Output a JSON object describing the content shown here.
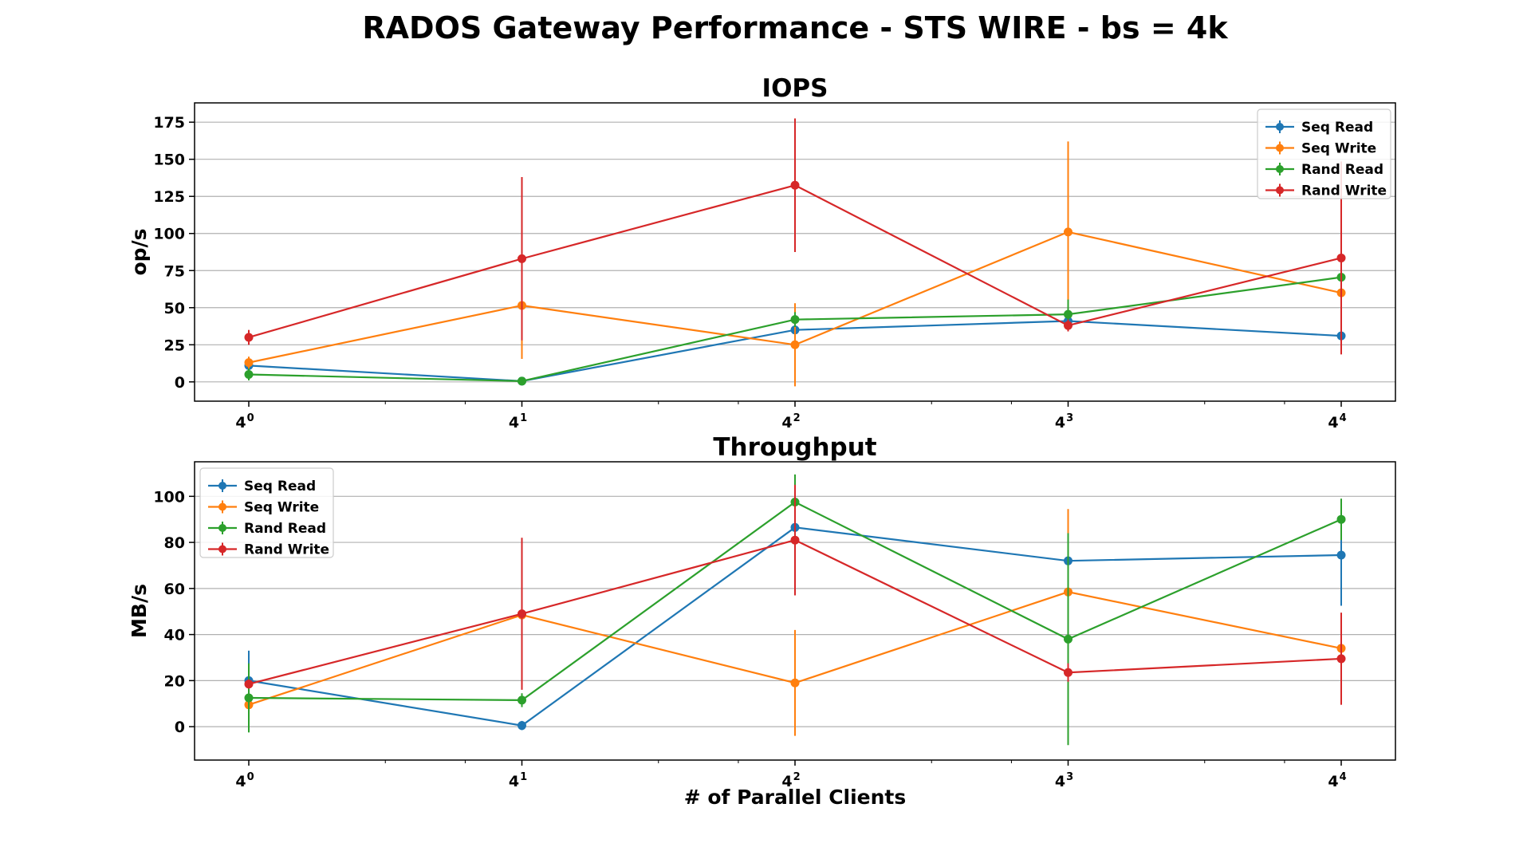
{
  "figure_title": "RADOS Gateway Performance - STS WIRE - bs = 4k",
  "chart_data": [
    {
      "type": "line",
      "title": "IOPS",
      "xlabel": "",
      "ylabel": "op/s",
      "x_scale": "log4",
      "x": [
        1,
        4,
        16,
        64,
        256
      ],
      "x_tick_labels": [
        {
          "base": "4",
          "exp": "0"
        },
        {
          "base": "4",
          "exp": "1"
        },
        {
          "base": "4",
          "exp": "2"
        },
        {
          "base": "4",
          "exp": "3"
        },
        {
          "base": "4",
          "exp": "4"
        }
      ],
      "yticks": [
        0,
        25,
        50,
        75,
        100,
        125,
        150,
        175
      ],
      "ylim": [
        -13,
        188
      ],
      "grid": "horizontal",
      "legend": "upper right",
      "series": [
        {
          "name": "Seq Read",
          "color": "#1f77b4",
          "values": [
            11,
            0.5,
            35,
            41,
            31
          ],
          "err": [
            2,
            1,
            5,
            5,
            4
          ]
        },
        {
          "name": "Seq Write",
          "color": "#ff7f0e",
          "values": [
            13,
            51.5,
            25,
            101,
            60
          ],
          "err": [
            4,
            36,
            28,
            61,
            10
          ]
        },
        {
          "name": "Rand Read",
          "color": "#2ca02c",
          "values": [
            5,
            0.5,
            42,
            45.5,
            70.5
          ],
          "err": [
            4,
            1,
            5,
            10,
            5
          ]
        },
        {
          "name": "Rand Write",
          "color": "#d62728",
          "values": [
            30,
            83,
            132.5,
            38,
            83.5
          ],
          "err": [
            5,
            55,
            45,
            4,
            65
          ]
        }
      ]
    },
    {
      "type": "line",
      "title": "Throughput",
      "xlabel": "# of Parallel Clients",
      "ylabel": "MB/s",
      "x_scale": "log4",
      "x": [
        1,
        4,
        16,
        64,
        256
      ],
      "x_tick_labels": [
        {
          "base": "4",
          "exp": "0"
        },
        {
          "base": "4",
          "exp": "1"
        },
        {
          "base": "4",
          "exp": "2"
        },
        {
          "base": "4",
          "exp": "3"
        },
        {
          "base": "4",
          "exp": "4"
        }
      ],
      "yticks": [
        0,
        20,
        40,
        60,
        80,
        100
      ],
      "ylim": [
        -14.5,
        115
      ],
      "grid": "horizontal",
      "legend": "upper left",
      "series": [
        {
          "name": "Seq Read",
          "color": "#1f77b4",
          "values": [
            20,
            0.5,
            86.5,
            72,
            74.5
          ],
          "err": [
            13,
            2,
            5,
            4,
            22
          ]
        },
        {
          "name": "Seq Write",
          "color": "#ff7f0e",
          "values": [
            9.5,
            48.5,
            19,
            58.5,
            34
          ],
          "err": [
            3,
            3,
            23,
            36,
            5
          ]
        },
        {
          "name": "Rand Read",
          "color": "#2ca02c",
          "values": [
            12.5,
            11.5,
            97.5,
            38,
            90
          ],
          "err": [
            15,
            3,
            12,
            46,
            9
          ]
        },
        {
          "name": "Rand Write",
          "color": "#d62728",
          "values": [
            18.5,
            49,
            81,
            23.5,
            29.5
          ],
          "err": [
            2,
            33,
            24,
            4,
            20
          ]
        }
      ]
    }
  ]
}
